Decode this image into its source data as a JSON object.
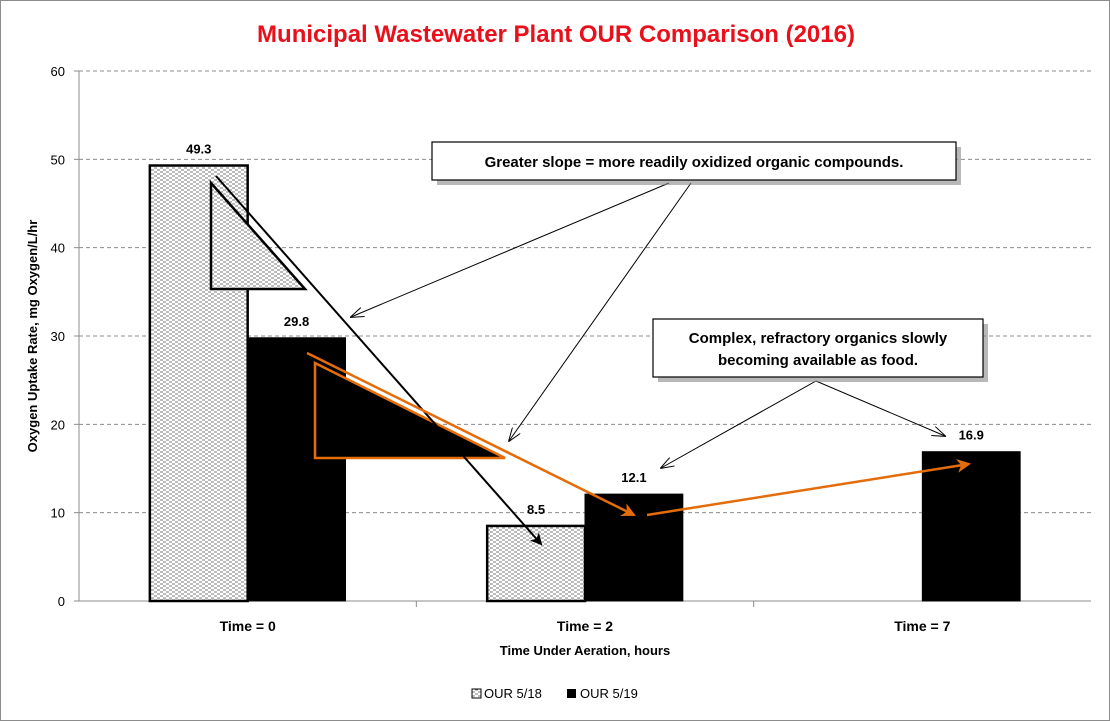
{
  "chart_data": {
    "type": "bar",
    "title": "Municipal Wastewater Plant OUR Comparison (2016)",
    "xlabel": "Time Under Aeration, hours",
    "ylabel": "Oxygen Uptake Rate, mg Oxygen/L/hr",
    "ylim": [
      0,
      60
    ],
    "yticks": [
      0,
      10,
      20,
      30,
      40,
      50,
      60
    ],
    "grid": true,
    "legend_position": "bottom",
    "categories": [
      "Time = 0",
      "Time = 2",
      "Time = 7"
    ],
    "series": [
      {
        "name": "OUR 5/18",
        "values": [
          49.3,
          8.5,
          null
        ],
        "labels": [
          "49.3",
          "8.5",
          ""
        ],
        "fill": "dotted-pattern"
      },
      {
        "name": "OUR 5/19",
        "values": [
          29.8,
          12.1,
          16.9
        ],
        "labels": [
          "29.8",
          "12.1",
          "16.9"
        ],
        "fill": "#000000"
      }
    ],
    "annotations": [
      {
        "id": "slope",
        "text": "Greater slope = more readily oxidized organic compounds."
      },
      {
        "id": "refractory",
        "lines": [
          "Complex, refractory organics slowly",
          "becoming available as food."
        ]
      }
    ],
    "colors": {
      "title": "#e8101a",
      "trend_arrow": "#e46c0a",
      "grid": "#8c8c8c"
    }
  }
}
